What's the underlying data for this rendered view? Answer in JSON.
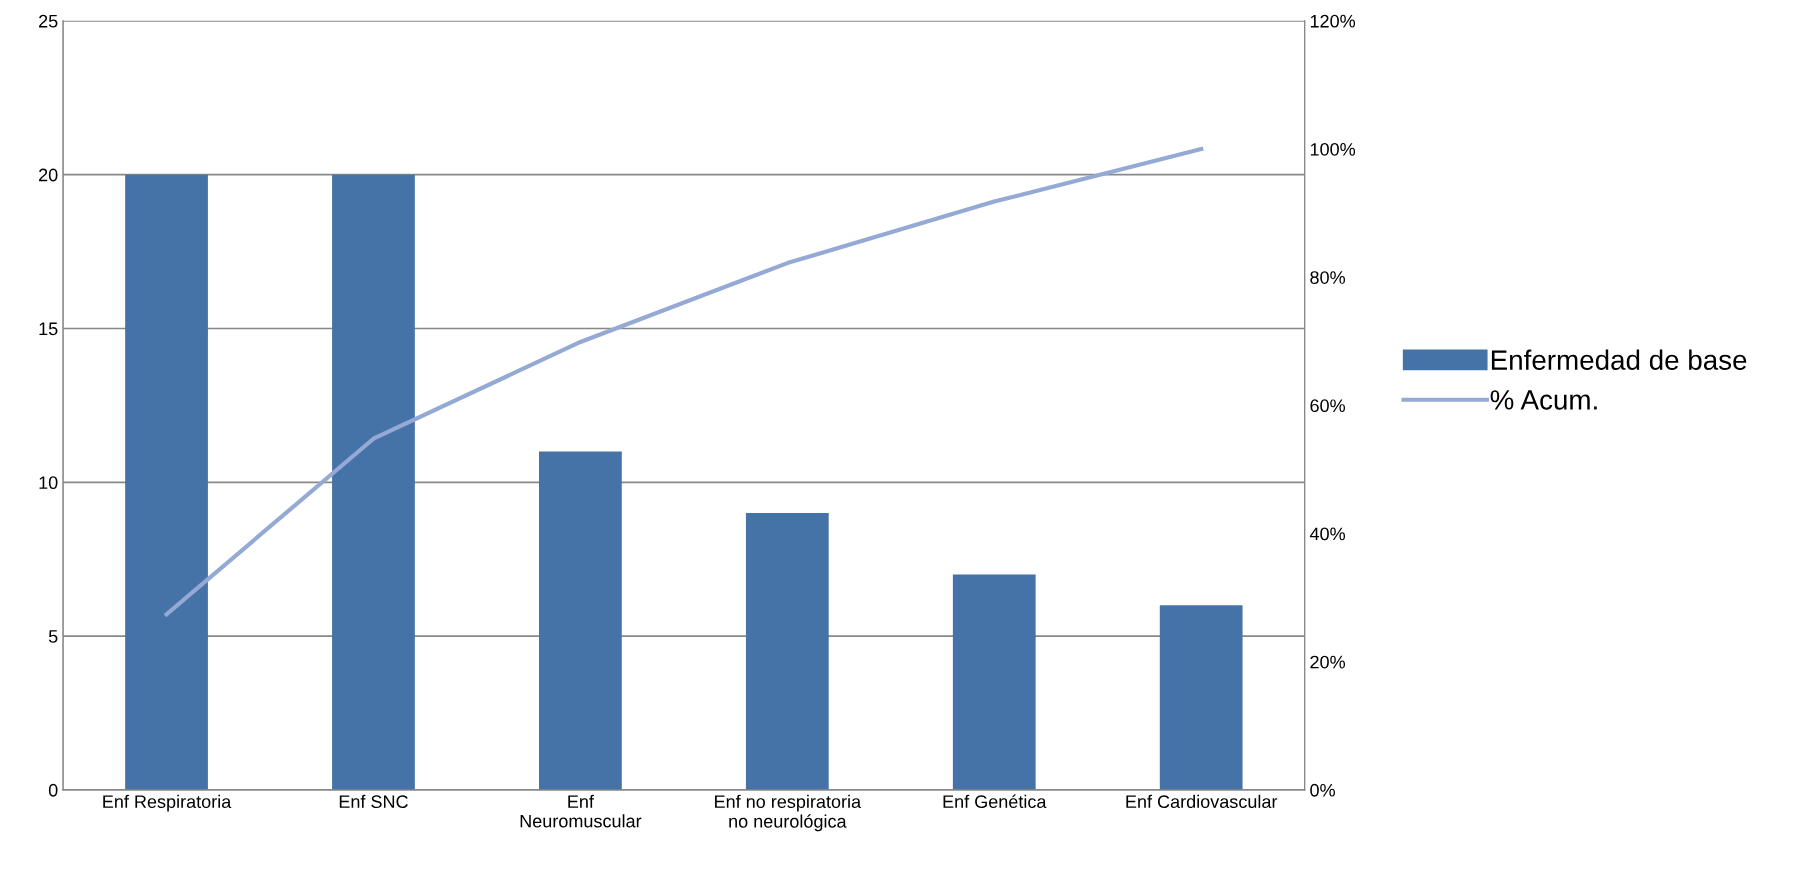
{
  "chart_data": {
    "type": "bar",
    "categories": [
      "Enf Respiratoria",
      "Enf SNC",
      "Enf\nNeuromuscular",
      "Enf no respiratoria\nno neurológica",
      "Enf Genética",
      "Enf Cardiovascular"
    ],
    "series": [
      {
        "name": "Enfermedad de base",
        "color": "#4572a7",
        "values": [
          20,
          20,
          11,
          9,
          7,
          6
        ]
      },
      {
        "name": "% Acum.",
        "color": "#94a9d3",
        "type": "line",
        "axis": "y2",
        "values": [
          27.4,
          54.8,
          69.9,
          82.2,
          91.8,
          100
        ]
      }
    ],
    "ylim": [
      0,
      25
    ],
    "yticks": [
      0,
      5,
      10,
      15,
      20,
      25
    ],
    "y2lim": [
      0,
      120
    ],
    "y2ticks": [
      {
        "value": 0,
        "label": "0%"
      },
      {
        "value": 20,
        "label": "20%"
      },
      {
        "value": 40,
        "label": "40%"
      },
      {
        "value": 60,
        "label": "60%"
      },
      {
        "value": 80,
        "label": "80%"
      },
      {
        "value": 100,
        "label": "100%"
      },
      {
        "value": 120,
        "label": "120%"
      }
    ],
    "grid": "y",
    "legend": "right",
    "marker": "none"
  }
}
